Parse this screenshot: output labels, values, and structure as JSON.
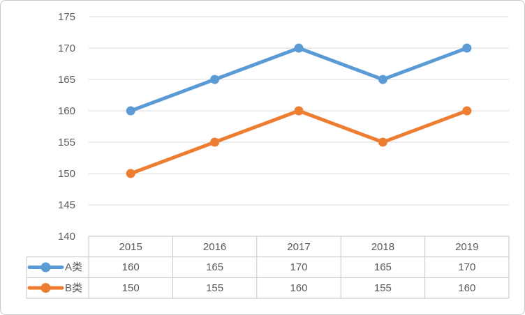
{
  "colors": {
    "series_a": "#5B9BD5",
    "series_b": "#ED7D31",
    "gridline": "#D9D9D9",
    "table_border": "#C6C6C6",
    "text": "#595959",
    "frame_border": "#C8C8C8",
    "background": "#FFFFFF"
  },
  "chart_data": {
    "type": "line",
    "title": "",
    "xlabel": "",
    "ylabel": "",
    "categories": [
      "2015",
      "2016",
      "2017",
      "2018",
      "2019"
    ],
    "series": [
      {
        "name": "A类",
        "values": [
          160,
          165,
          170,
          165,
          170
        ],
        "color": "#5B9BD5"
      },
      {
        "name": "B类",
        "values": [
          150,
          155,
          160,
          155,
          160
        ],
        "color": "#ED7D31"
      }
    ],
    "ylim": [
      140,
      175
    ],
    "ytick_step": 5,
    "yticks": [
      175,
      170,
      165,
      160,
      155,
      150,
      145,
      140
    ],
    "grid": true,
    "markers": "circle",
    "legend_position": "data-table-left",
    "data_table": true
  }
}
